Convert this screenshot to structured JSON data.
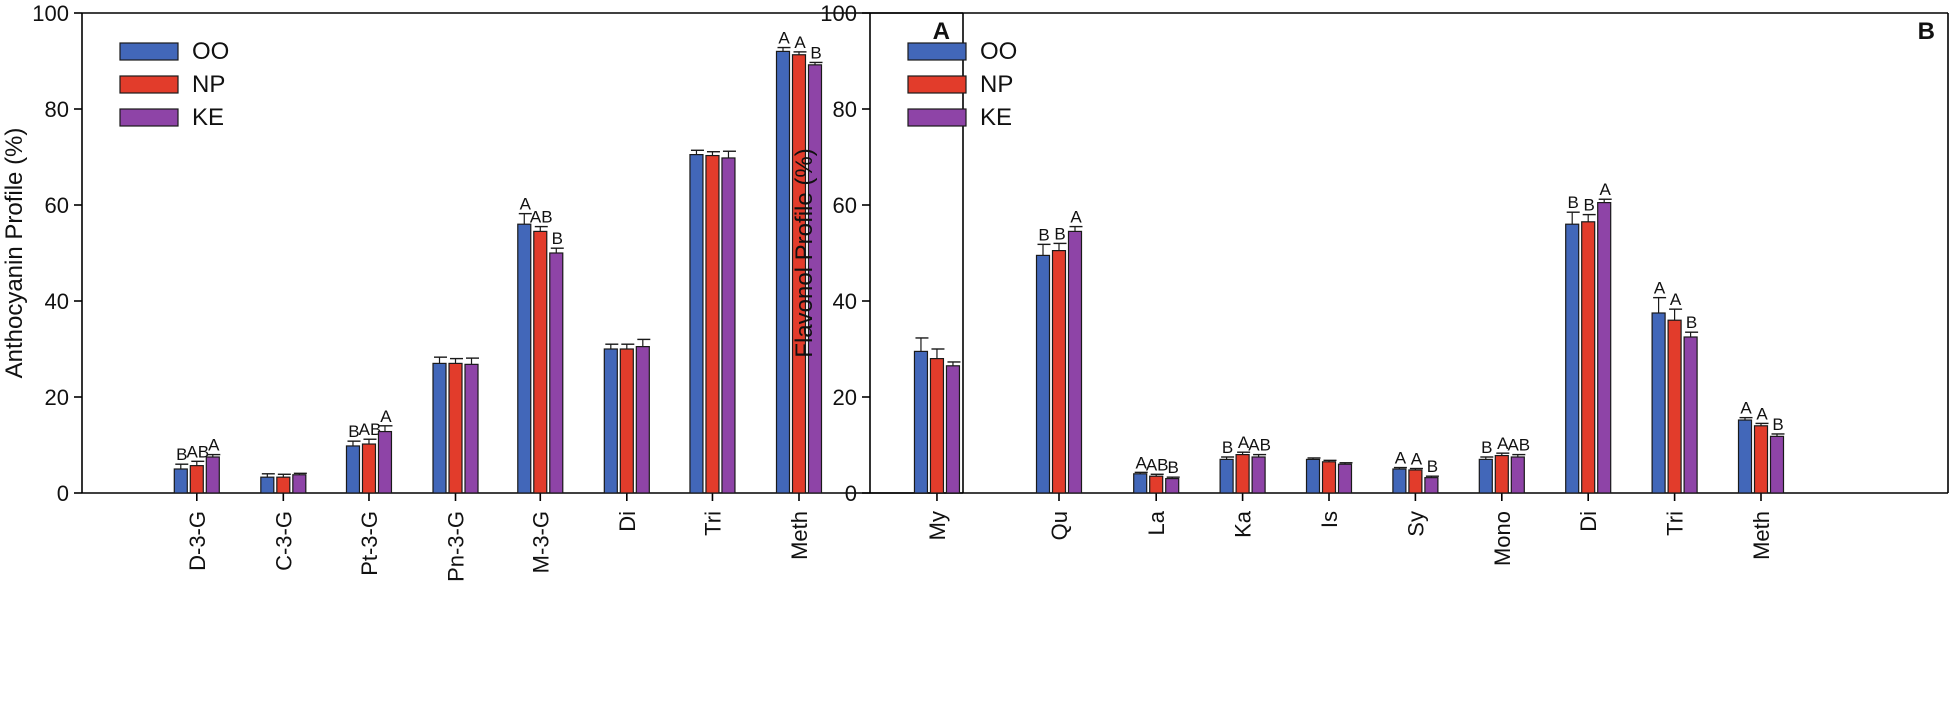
{
  "chart_data": [
    {
      "type": "bar",
      "panel_label": "A",
      "ylabel": "Anthocyanin Profile (%)",
      "xlabel": "",
      "ylim": [
        0,
        100
      ],
      "yticks": [
        "0",
        "20",
        "40",
        "60",
        "80",
        "100"
      ],
      "legend_position": "top-left",
      "categories": [
        "D-3-G",
        "C-3-G",
        "Pt-3-G",
        "Pn-3-G",
        "M-3-G",
        "Di",
        "Tri",
        "Meth"
      ],
      "series": [
        {
          "name": "OO",
          "color": "#4267b9",
          "values": [
            5,
            3.3,
            9.8,
            27,
            56,
            30,
            70.5,
            92
          ],
          "errors": [
            1,
            0.7,
            1.0,
            1.3,
            2.2,
            1.0,
            0.9,
            0.8
          ],
          "letters": [
            "B",
            "",
            "B",
            "",
            "A",
            "",
            "",
            "A"
          ]
        },
        {
          "name": "NP",
          "color": "#e23c2b",
          "values": [
            5.7,
            3.3,
            10.2,
            27,
            54.5,
            30,
            70.3,
            91.3
          ],
          "errors": [
            0.9,
            0.6,
            1.0,
            1.0,
            1.0,
            1.0,
            0.8,
            0.6
          ],
          "letters": [
            "AB",
            "",
            "AB",
            "",
            "AB",
            "",
            "",
            "A"
          ]
        },
        {
          "name": "KE",
          "color": "#8e44a7",
          "values": [
            7.5,
            3.8,
            12.8,
            26.8,
            50,
            30.5,
            69.8,
            89.2
          ],
          "errors": [
            0.5,
            0.3,
            1.2,
            1.3,
            1.0,
            1.5,
            1.4,
            0.5
          ],
          "letters": [
            "A",
            "",
            "A",
            "",
            "B",
            "",
            "",
            "B"
          ]
        }
      ]
    },
    {
      "type": "bar",
      "panel_label": "B",
      "ylabel": "Flavonol Profile (%)",
      "xlabel": "",
      "ylim": [
        0,
        100
      ],
      "yticks": [
        "0",
        "20",
        "40",
        "60",
        "80",
        "100"
      ],
      "legend_position": "top-left",
      "categories": [
        "My",
        "Qu",
        "La",
        "Ka",
        "Is",
        "Sy",
        "Mono",
        "Di",
        "Tri",
        "Meth"
      ],
      "series": [
        {
          "name": "OO",
          "color": "#4267b9",
          "values": [
            29.5,
            49.5,
            4,
            7,
            7,
            5,
            7,
            56,
            37.5,
            15.2
          ],
          "errors": [
            2.8,
            2.3,
            0.3,
            0.5,
            0.3,
            0.3,
            0.5,
            2.5,
            3.2,
            0.5
          ],
          "letters": [
            "",
            "B",
            "A",
            "B",
            "",
            "A",
            "B",
            "B",
            "A",
            "A"
          ]
        },
        {
          "name": "NP",
          "color": "#e23c2b",
          "values": [
            28,
            50.5,
            3.5,
            8,
            6.5,
            4.8,
            7.8,
            56.5,
            36,
            14
          ],
          "errors": [
            2.0,
            1.5,
            0.4,
            0.5,
            0.3,
            0.3,
            0.5,
            1.5,
            2.3,
            0.5
          ],
          "letters": [
            "",
            "B",
            "AB",
            "A",
            "",
            "A",
            "A",
            "B",
            "A",
            "A"
          ]
        },
        {
          "name": "KE",
          "color": "#8e44a7",
          "values": [
            26.5,
            54.5,
            3,
            7.5,
            6,
            3.2,
            7.5,
            60.5,
            32.5,
            11.8
          ],
          "errors": [
            0.8,
            1.0,
            0.3,
            0.5,
            0.3,
            0.3,
            0.5,
            0.7,
            1.0,
            0.5
          ],
          "letters": [
            "",
            "A",
            "B",
            "AB",
            "",
            "B",
            "AB",
            "A",
            "B",
            "B"
          ]
        }
      ]
    }
  ]
}
